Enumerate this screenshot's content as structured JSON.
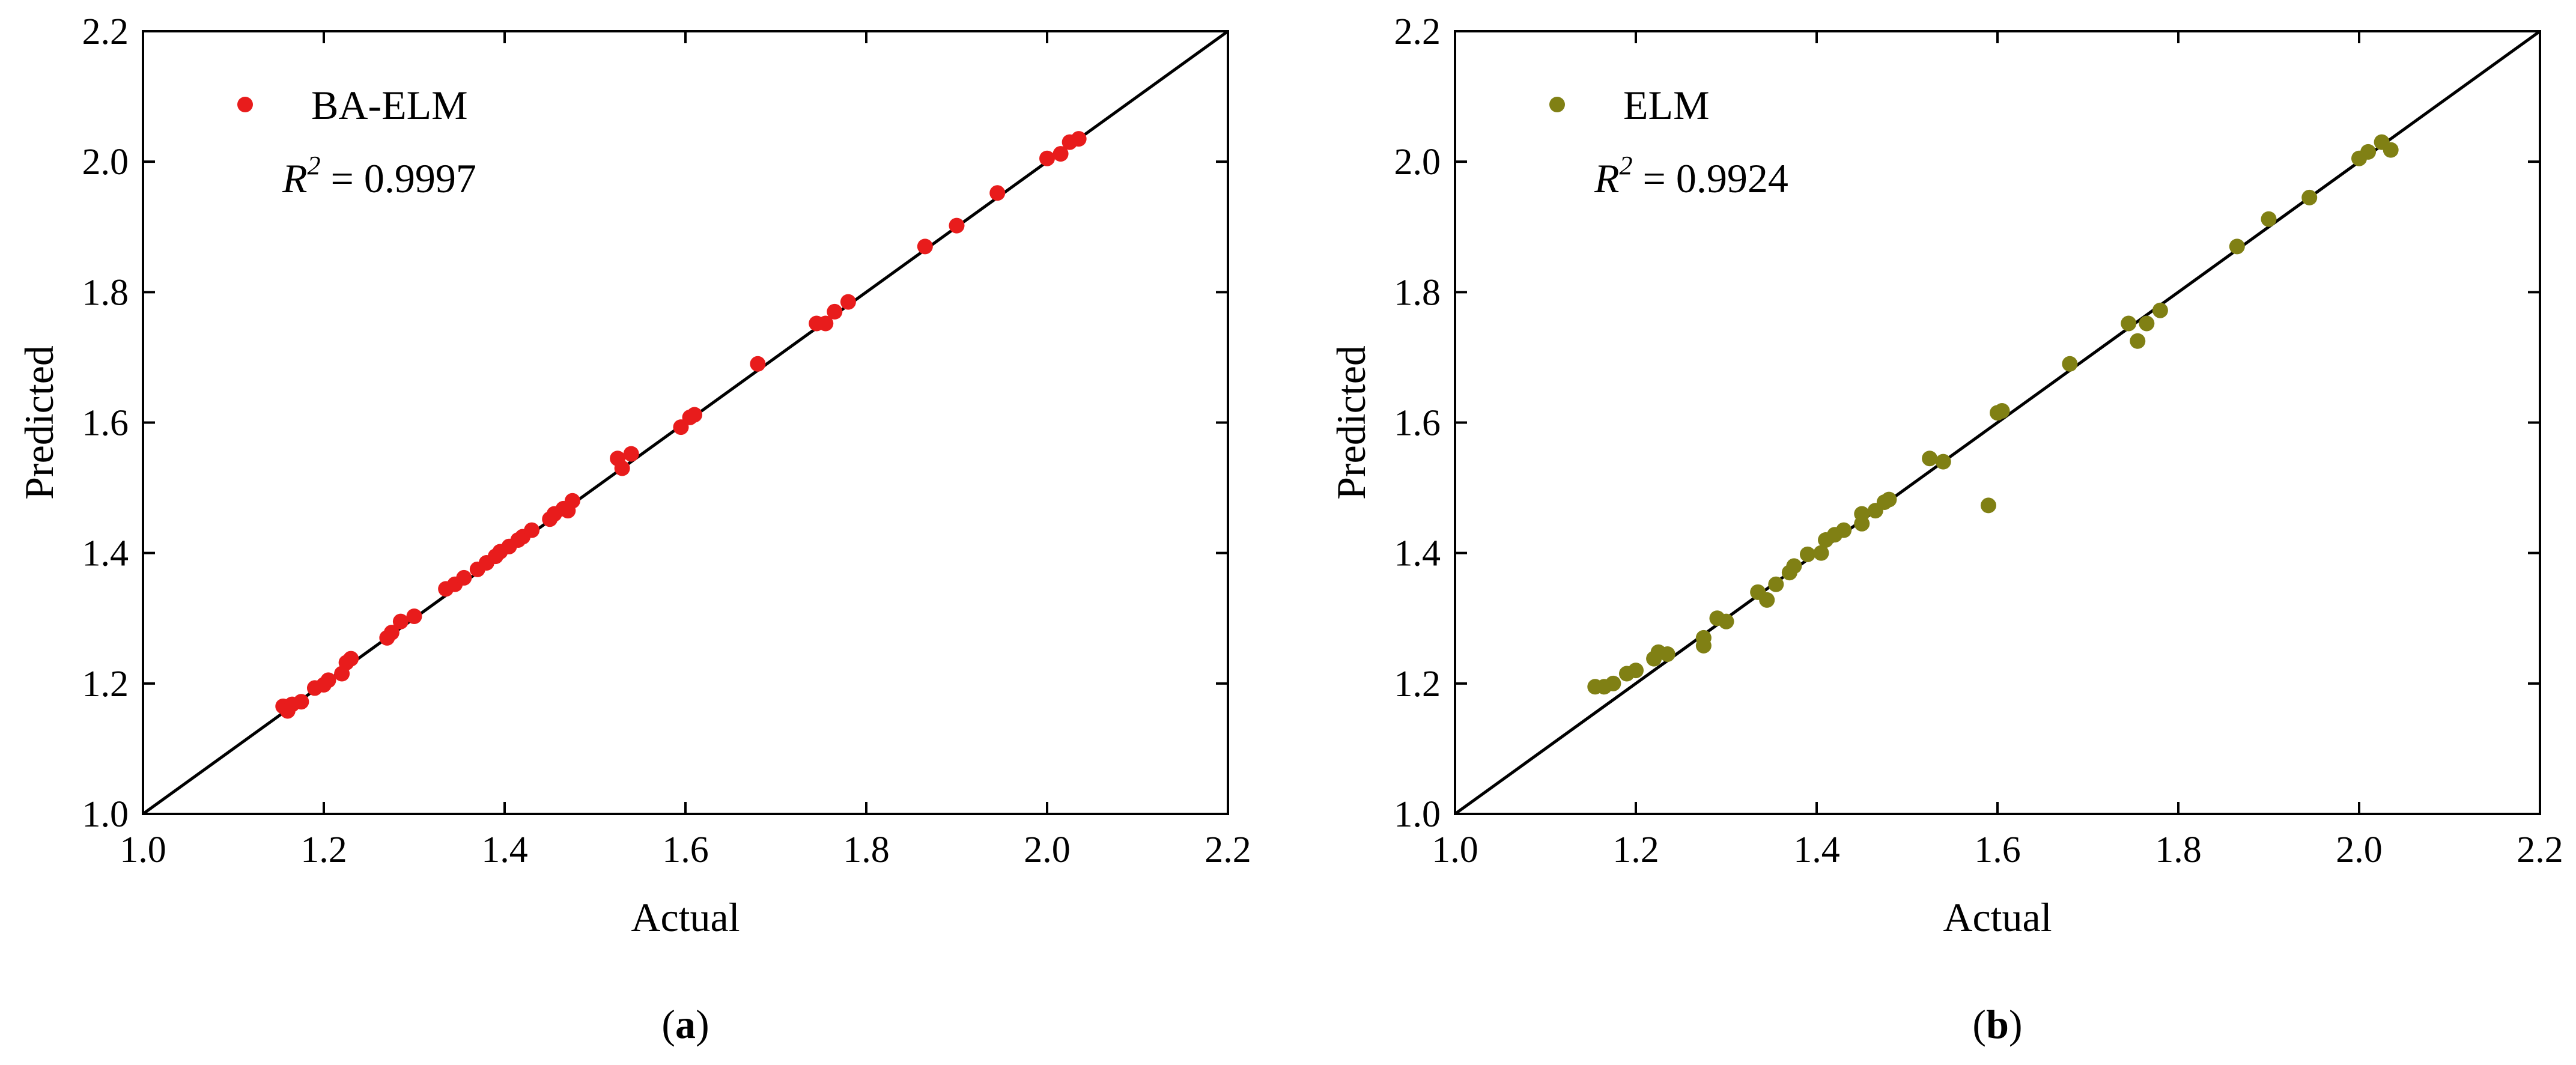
{
  "chart_data": [
    {
      "type": "scatter",
      "panel": "a",
      "xlabel": "Actual",
      "ylabel": "Predicted",
      "xlim": [
        1.0,
        2.2
      ],
      "ylim": [
        1.0,
        2.2
      ],
      "xticks": [
        "1.0",
        "1.2",
        "1.4",
        "1.6",
        "1.8",
        "2.0",
        "2.2"
      ],
      "yticks": [
        "1.0",
        "1.2",
        "1.4",
        "1.6",
        "1.8",
        "2.0",
        "2.2"
      ],
      "legend": {
        "label": "BA-ELM",
        "position": "top-left"
      },
      "r2_prefix": "R",
      "r2_exp": "2",
      "r2_value": " = 0.9997",
      "reference_line": {
        "from": [
          1.0,
          1.0
        ],
        "to": [
          2.2,
          2.2
        ]
      },
      "grid": false,
      "series": [
        {
          "name": "BA-ELM",
          "color": "#e81c1c",
          "points": [
            [
              1.155,
              1.165
            ],
            [
              1.16,
              1.158
            ],
            [
              1.165,
              1.168
            ],
            [
              1.175,
              1.172
            ],
            [
              1.19,
              1.193
            ],
            [
              1.2,
              1.198
            ],
            [
              1.205,
              1.205
            ],
            [
              1.22,
              1.215
            ],
            [
              1.225,
              1.232
            ],
            [
              1.23,
              1.238
            ],
            [
              1.27,
              1.27
            ],
            [
              1.275,
              1.278
            ],
            [
              1.285,
              1.295
            ],
            [
              1.3,
              1.303
            ],
            [
              1.335,
              1.345
            ],
            [
              1.345,
              1.352
            ],
            [
              1.355,
              1.362
            ],
            [
              1.37,
              1.375
            ],
            [
              1.38,
              1.385
            ],
            [
              1.39,
              1.395
            ],
            [
              1.395,
              1.402
            ],
            [
              1.405,
              1.41
            ],
            [
              1.415,
              1.42
            ],
            [
              1.42,
              1.425
            ],
            [
              1.43,
              1.435
            ],
            [
              1.45,
              1.452
            ],
            [
              1.455,
              1.46
            ],
            [
              1.465,
              1.468
            ],
            [
              1.47,
              1.465
            ],
            [
              1.475,
              1.48
            ],
            [
              1.525,
              1.545
            ],
            [
              1.53,
              1.53
            ],
            [
              1.54,
              1.552
            ],
            [
              1.595,
              1.593
            ],
            [
              1.605,
              1.608
            ],
            [
              1.61,
              1.612
            ],
            [
              1.68,
              1.69
            ],
            [
              1.745,
              1.752
            ],
            [
              1.755,
              1.752
            ],
            [
              1.765,
              1.77
            ],
            [
              1.78,
              1.785
            ],
            [
              1.865,
              1.87
            ],
            [
              1.9,
              1.902
            ],
            [
              1.945,
              1.952
            ],
            [
              2.0,
              2.005
            ],
            [
              2.015,
              2.012
            ],
            [
              2.025,
              2.03
            ],
            [
              2.035,
              2.035
            ]
          ]
        }
      ]
    },
    {
      "type": "scatter",
      "panel": "b",
      "xlabel": "Actual",
      "ylabel": "Predicted",
      "xlim": [
        1.0,
        2.2
      ],
      "ylim": [
        1.0,
        2.2
      ],
      "xticks": [
        "1.0",
        "1.2",
        "1.4",
        "1.6",
        "1.8",
        "2.0",
        "2.2"
      ],
      "yticks": [
        "1.0",
        "1.2",
        "1.4",
        "1.6",
        "1.8",
        "2.0",
        "2.2"
      ],
      "legend": {
        "label": "ELM",
        "position": "top-left"
      },
      "r2_prefix": "R",
      "r2_exp": "2",
      "r2_value": " = 0.9924",
      "reference_line": {
        "from": [
          1.0,
          1.0
        ],
        "to": [
          2.2,
          2.2
        ]
      },
      "grid": false,
      "series": [
        {
          "name": "ELM",
          "color": "#808014",
          "points": [
            [
              1.155,
              1.195
            ],
            [
              1.165,
              1.195
            ],
            [
              1.175,
              1.2
            ],
            [
              1.19,
              1.215
            ],
            [
              1.2,
              1.22
            ],
            [
              1.22,
              1.238
            ],
            [
              1.225,
              1.248
            ],
            [
              1.235,
              1.245
            ],
            [
              1.275,
              1.258
            ],
            [
              1.275,
              1.27
            ],
            [
              1.29,
              1.3
            ],
            [
              1.3,
              1.295
            ],
            [
              1.335,
              1.34
            ],
            [
              1.345,
              1.328
            ],
            [
              1.355,
              1.352
            ],
            [
              1.37,
              1.37
            ],
            [
              1.375,
              1.38
            ],
            [
              1.39,
              1.398
            ],
            [
              1.405,
              1.4
            ],
            [
              1.41,
              1.42
            ],
            [
              1.42,
              1.428
            ],
            [
              1.43,
              1.435
            ],
            [
              1.45,
              1.445
            ],
            [
              1.45,
              1.46
            ],
            [
              1.465,
              1.465
            ],
            [
              1.475,
              1.478
            ],
            [
              1.48,
              1.482
            ],
            [
              1.525,
              1.545
            ],
            [
              1.54,
              1.54
            ],
            [
              1.59,
              1.473
            ],
            [
              1.6,
              1.615
            ],
            [
              1.605,
              1.618
            ],
            [
              1.68,
              1.69
            ],
            [
              1.745,
              1.752
            ],
            [
              1.755,
              1.725
            ],
            [
              1.765,
              1.752
            ],
            [
              1.78,
              1.772
            ],
            [
              1.865,
              1.87
            ],
            [
              1.9,
              1.912
            ],
            [
              1.945,
              1.945
            ],
            [
              2.0,
              2.005
            ],
            [
              2.01,
              2.015
            ],
            [
              2.025,
              2.03
            ],
            [
              2.035,
              2.018
            ]
          ]
        }
      ]
    }
  ],
  "panel_labels": [
    {
      "open": "(",
      "letter": "a",
      "close": ")"
    },
    {
      "open": "(",
      "letter": "b",
      "close": ")"
    }
  ]
}
